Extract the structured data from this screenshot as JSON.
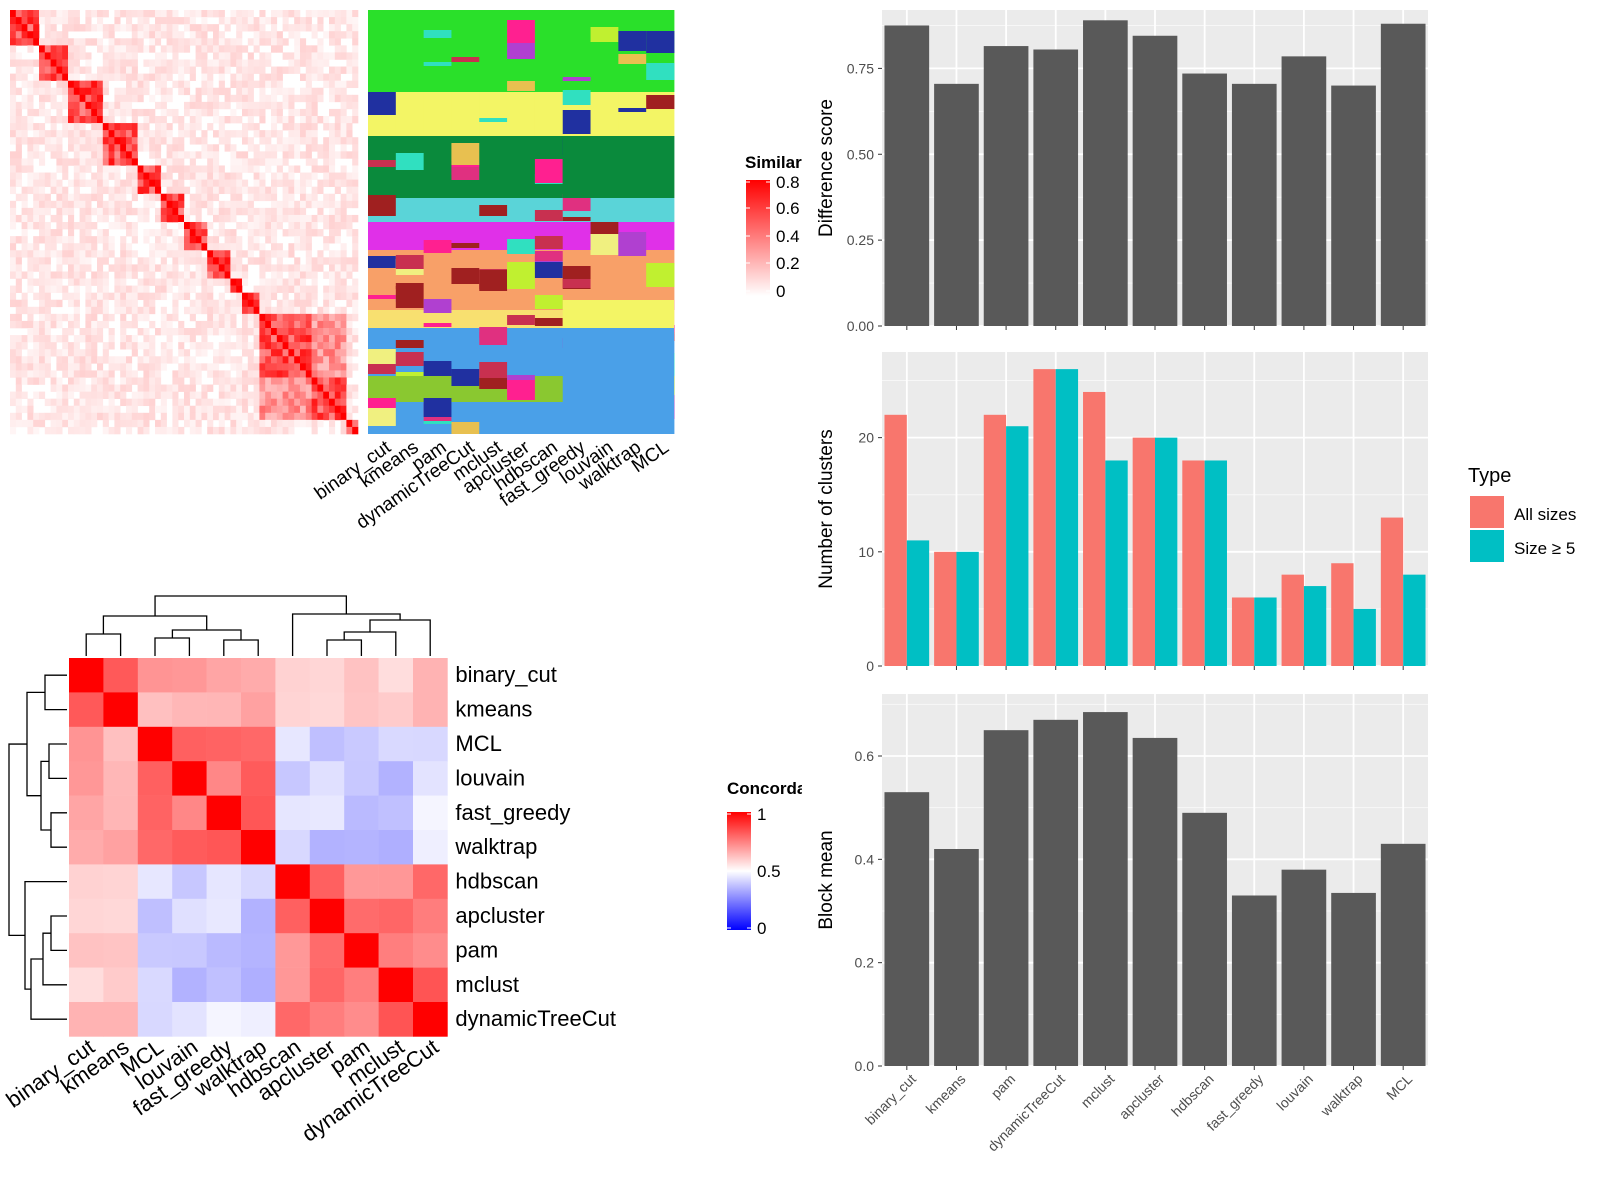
{
  "methods_sim": [
    "binary_cut",
    "kmeans",
    "pam",
    "dynamicTreeCut",
    "mclust",
    "apcluster",
    "hdbscan",
    "fast_greedy",
    "louvain",
    "walktrap",
    "MCL"
  ],
  "similarity_legend": {
    "title": "Similarity",
    "ticks": [
      "0.8",
      "0.6",
      "0.4",
      "0.2",
      "0"
    ]
  },
  "concordance": {
    "order": [
      "binary_cut",
      "kmeans",
      "MCL",
      "louvain",
      "fast_greedy",
      "walktrap",
      "hdbscan",
      "apcluster",
      "pam",
      "mclust",
      "dynamicTreeCut"
    ],
    "legend": {
      "title": "Concordance",
      "ticks": [
        "1",
        "0.5",
        "0"
      ]
    }
  },
  "chart_data": [
    {
      "type": "bar",
      "categories": [
        "binary_cut",
        "kmeans",
        "pam",
        "dynamicTreeCut",
        "mclust",
        "apcluster",
        "hdbscan",
        "fast_greedy",
        "louvain",
        "walktrap",
        "MCL"
      ],
      "values": [
        0.875,
        0.705,
        0.815,
        0.805,
        0.89,
        0.845,
        0.735,
        0.705,
        0.785,
        0.7,
        0.88
      ],
      "ylabel": "Difference score",
      "ylim": [
        0,
        0.92
      ],
      "yticks": [
        "0.00",
        "0.25",
        "0.50",
        "0.75"
      ],
      "grid": true
    },
    {
      "type": "bar",
      "categories": [
        "binary_cut",
        "kmeans",
        "pam",
        "dynamicTreeCut",
        "mclust",
        "apcluster",
        "hdbscan",
        "fast_greedy",
        "louvain",
        "walktrap",
        "MCL"
      ],
      "series": [
        {
          "name": "All sizes",
          "color": "#f8766d",
          "values": [
            22,
            10,
            22,
            26,
            24,
            20,
            18,
            6,
            8,
            9,
            13
          ]
        },
        {
          "name": "Size ≥ 5",
          "color": "#00bfc4",
          "values": [
            11,
            10,
            21,
            26,
            18,
            20,
            18,
            6,
            7,
            5,
            8
          ]
        }
      ],
      "ylabel": "Number of clusters",
      "ylim": [
        0,
        27.5
      ],
      "yticks": [
        "0",
        "10",
        "20"
      ],
      "legend": {
        "title": "Type",
        "position": "right"
      },
      "grid": true
    },
    {
      "type": "bar",
      "categories": [
        "binary_cut",
        "kmeans",
        "pam",
        "dynamicTreeCut",
        "mclust",
        "apcluster",
        "hdbscan",
        "fast_greedy",
        "louvain",
        "walktrap",
        "MCL"
      ],
      "values": [
        0.53,
        0.42,
        0.65,
        0.67,
        0.685,
        0.635,
        0.49,
        0.33,
        0.38,
        0.335,
        0.43
      ],
      "ylabel": "Block mean",
      "ylim": [
        0,
        0.72
      ],
      "yticks": [
        "0.0",
        "0.2",
        "0.4",
        "0.6"
      ],
      "grid": true
    }
  ]
}
